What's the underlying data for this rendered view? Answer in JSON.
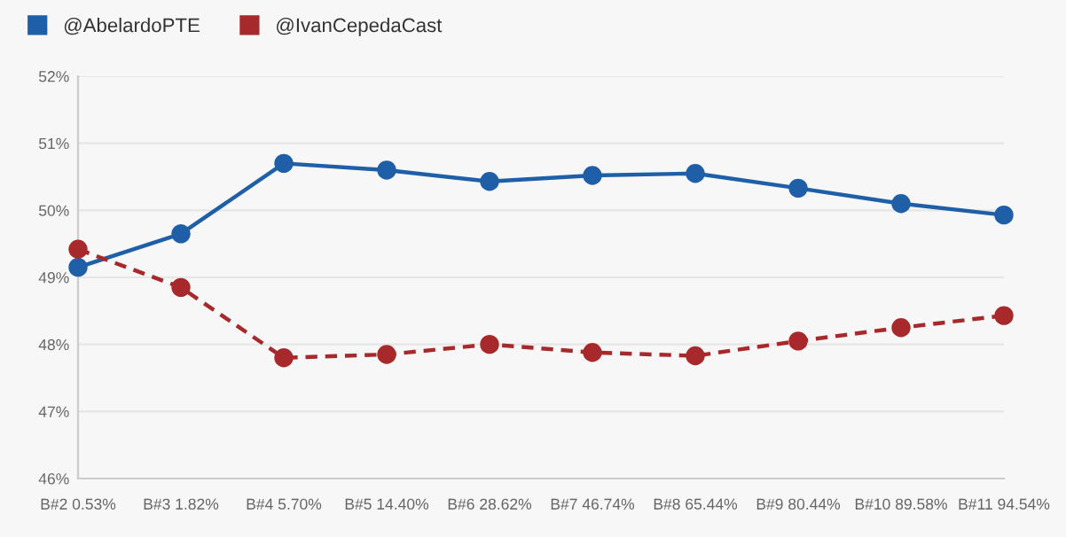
{
  "chart_data": {
    "type": "line",
    "categories": [
      "B#2 0.53%",
      "B#3 1.82%",
      "B#4 5.70%",
      "B#5 14.40%",
      "B#6 28.62%",
      "B#7 46.74%",
      "B#8 65.44%",
      "B#9 80.44%",
      "B#10 89.58%",
      "B#11 94.54%"
    ],
    "series": [
      {
        "name": "@AbelardoPTE",
        "color": "#1f5fa8",
        "line_style": "solid",
        "values": [
          49.15,
          49.65,
          50.7,
          50.6,
          50.43,
          50.52,
          50.55,
          50.33,
          50.1,
          49.93
        ]
      },
      {
        "name": "@IvanCepedaCast",
        "color": "#a8292c",
        "line_style": "dashed",
        "values": [
          49.42,
          48.85,
          47.8,
          47.85,
          48.0,
          47.88,
          47.83,
          48.05,
          48.25,
          48.43
        ]
      }
    ],
    "ylim": [
      46,
      52
    ],
    "yticks": [
      {
        "value": 46,
        "label": "46%"
      },
      {
        "value": 47,
        "label": "47%"
      },
      {
        "value": 48,
        "label": "48%"
      },
      {
        "value": 49,
        "label": "49%"
      },
      {
        "value": 50,
        "label": "50%"
      },
      {
        "value": 51,
        "label": "51%"
      },
      {
        "value": 52,
        "label": "52%"
      }
    ],
    "grid": "y",
    "legend": "top left",
    "marker": "circle"
  }
}
